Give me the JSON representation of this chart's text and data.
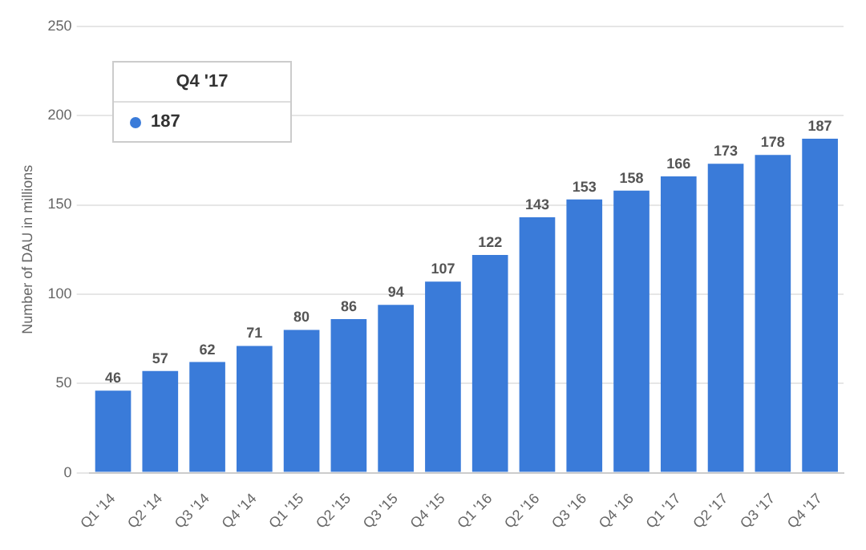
{
  "chart_data": {
    "type": "bar",
    "ylabel": "Number of DAU in millions",
    "categories": [
      "Q1 '14",
      "Q2 '14",
      "Q3 '14",
      "Q4 '14",
      "Q1 '15",
      "Q2 '15",
      "Q3 '15",
      "Q4 '15",
      "Q1 '16",
      "Q2 '16",
      "Q3 '16",
      "Q4 '16",
      "Q1 '17",
      "Q2 '17",
      "Q3 '17",
      "Q4 '17"
    ],
    "values": [
      46,
      57,
      62,
      71,
      80,
      86,
      94,
      107,
      122,
      143,
      153,
      158,
      166,
      173,
      178,
      187
    ],
    "color": "#3a7bd9",
    "ylim": [
      0,
      250
    ],
    "yticks": [
      0,
      50,
      100,
      150,
      200,
      250
    ],
    "grid": "y",
    "data_labels": true,
    "annotations": [
      "Q4 '17",
      "187"
    ]
  }
}
